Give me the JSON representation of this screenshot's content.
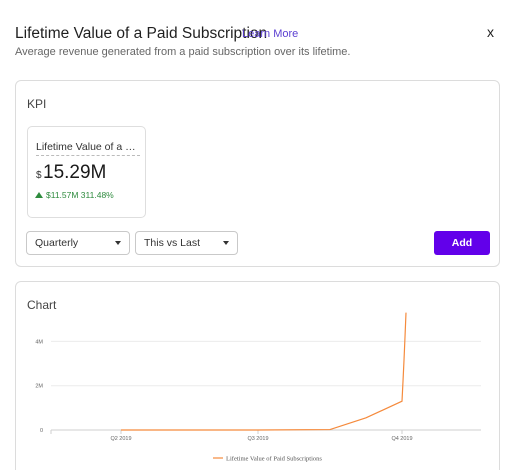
{
  "modal": {
    "title": "Lifetime Value of a Paid Subscription",
    "learn_more": "Learn More",
    "subtitle": "Average revenue generated from a paid subscription over its lifetime.",
    "close": "x"
  },
  "kpi_section": {
    "title": "KPI",
    "tile": {
      "name": "Lifetime Value of a Pai...",
      "currency": "$",
      "value": "15.29M",
      "delta_text": "$11.57M  311.48%",
      "delta_color": "#2e8b3e"
    },
    "period_select": {
      "selected": "Quarterly"
    },
    "compare_select": {
      "selected": "This vs Last"
    },
    "add_label": "Add",
    "accent": "#6200ea"
  },
  "chart_section": {
    "title": "Chart"
  },
  "chart_data": {
    "type": "line",
    "x": [
      0,
      0.5,
      1,
      1.5,
      1.75,
      2,
      2.25,
      2.5,
      2.75,
      3
    ],
    "x_tick_positions": [
      0,
      1,
      2
    ],
    "categories": [
      "Q2 2019",
      "Q3 2019",
      "Q4 2019"
    ],
    "series": [
      {
        "name": "Lifetime Value of Paid Subscriptions",
        "color": "#f58a3c",
        "values": [
          0,
          0,
          0,
          0.02,
          0.55,
          1.3,
          2.2,
          3.15,
          4.2,
          5.3
        ]
      }
    ],
    "y_ticks": [
      0,
      2,
      4
    ],
    "y_tick_labels": [
      "0",
      "2M",
      "4M"
    ],
    "ylim": [
      0,
      4.2
    ],
    "grid": true,
    "legend_position": "bottom"
  }
}
